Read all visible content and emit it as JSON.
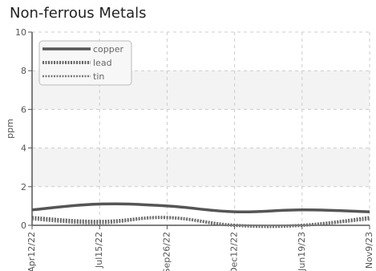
{
  "chart_data": {
    "type": "line",
    "title": "Non-ferrous Metals",
    "xlabel": "",
    "ylabel": "ppm",
    "x": [
      "Apr12/22",
      "Jul15/22",
      "Sep26/22",
      "Dec12/22",
      "Jun19/23",
      "Nov9/23"
    ],
    "ylim": [
      0,
      10
    ],
    "yticks": [
      0,
      2,
      4,
      6,
      8,
      10
    ],
    "grid": true,
    "legend_position": "top-left",
    "series": [
      {
        "name": "copper",
        "values": [
          0.8,
          1.1,
          1.0,
          0.7,
          0.8,
          0.7
        ],
        "color": "#555555",
        "style": "solid"
      },
      {
        "name": "lead",
        "values": [
          0.4,
          0.2,
          0.4,
          0.0,
          0.0,
          0.4
        ],
        "color": "#666666",
        "style": "dotted-thick"
      },
      {
        "name": "tin",
        "values": [
          0.3,
          0.1,
          0.4,
          0.0,
          0.0,
          0.3
        ],
        "color": "#777777",
        "style": "dotted"
      }
    ]
  }
}
